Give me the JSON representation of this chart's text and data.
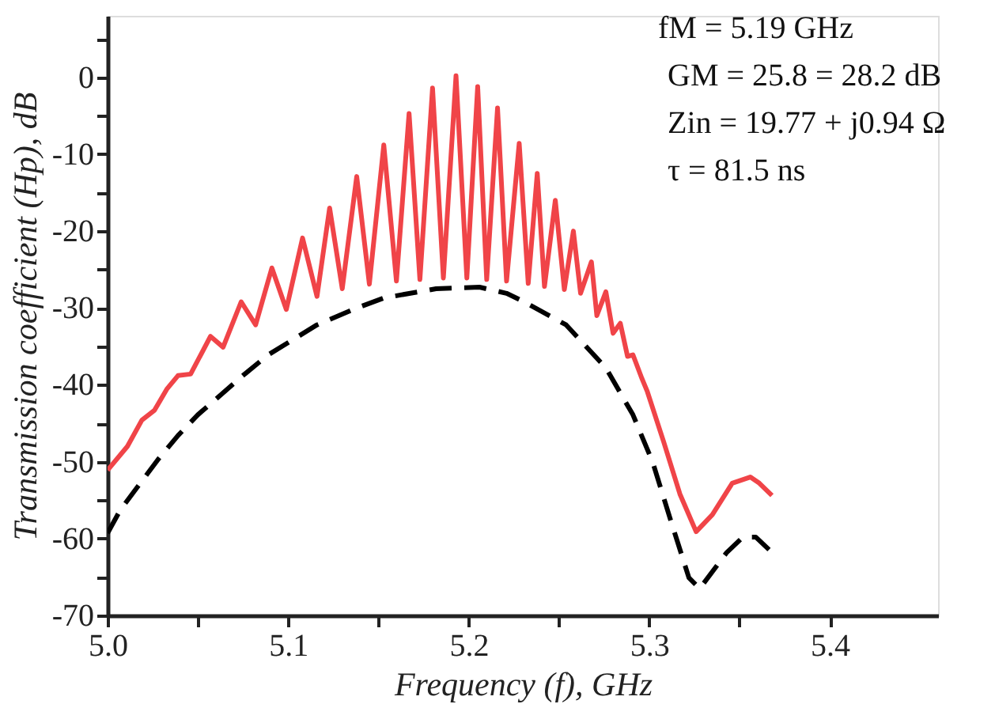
{
  "chart_data": {
    "type": "line",
    "xlabel": "Frequency (f), GHz",
    "ylabel": "Transmission coefficient (Hp), dB",
    "xlim": [
      5.0,
      5.46
    ],
    "ylim": [
      -70,
      8
    ],
    "xticks": [
      {
        "value": 5.0,
        "label": "5.0"
      },
      {
        "value": 5.05,
        "label": null
      },
      5.1,
      {
        "value": 5.15,
        "label": null
      },
      5.2,
      {
        "value": 5.25,
        "label": null
      },
      5.3,
      {
        "value": 5.35,
        "label": null
      },
      5.4
    ],
    "yticks": [
      -70,
      {
        "value": -65,
        "label": null
      },
      -60,
      {
        "value": -55,
        "label": null
      },
      -50,
      {
        "value": -45,
        "label": null
      },
      -40,
      {
        "value": -35,
        "label": null
      },
      -30,
      {
        "value": -25,
        "label": null
      },
      -20,
      {
        "value": -15,
        "label": null
      },
      -10,
      {
        "value": -5,
        "label": null
      },
      0,
      {
        "value": 5,
        "label": null
      }
    ],
    "grid": false,
    "annotations": [
      "fM = 5.19 GHz",
      "GM = 25.8 = 28.2 dB",
      "Zin = 19.77 + j0.94 Ω",
      "τ = 81.5 ns"
    ],
    "series": [
      {
        "color": "#f04448",
        "line_style": "solid",
        "x": [
          5.0,
          5.011,
          5.019,
          5.026,
          5.033,
          5.039,
          5.046,
          5.057,
          5.064,
          5.074,
          5.082,
          5.091,
          5.099,
          5.108,
          5.116,
          5.123,
          5.13,
          5.138,
          5.145,
          5.153,
          5.16,
          5.167,
          5.173,
          5.18,
          5.186,
          5.193,
          5.199,
          5.205,
          5.21,
          5.216,
          5.221,
          5.228,
          5.233,
          5.238,
          5.242,
          5.248,
          5.253,
          5.258,
          5.262,
          5.268,
          5.271,
          5.276,
          5.28,
          5.284,
          5.288,
          5.291,
          5.296,
          5.299,
          5.308,
          5.317,
          5.326,
          5.335,
          5.346,
          5.356,
          5.361,
          5.368
        ],
        "values": [
          -51.1,
          -48.0,
          -44.6,
          -43.3,
          -40.5,
          -38.8,
          -38.6,
          -33.7,
          -35.1,
          -29.2,
          -32.2,
          -24.8,
          -30.2,
          -20.9,
          -28.5,
          -17.0,
          -27.5,
          -12.9,
          -26.9,
          -8.8,
          -26.5,
          -4.7,
          -26.3,
          -1.4,
          -26.1,
          0.2,
          -26.1,
          -1.2,
          -26.3,
          -4.0,
          -26.5,
          -8.6,
          -26.8,
          -12.5,
          -27.2,
          -16.0,
          -27.6,
          -20.0,
          -28.1,
          -24.0,
          -31.0,
          -27.9,
          -33.3,
          -32.0,
          -36.3,
          -36.1,
          -39.2,
          -40.9,
          -47.4,
          -54.2,
          -59.1,
          -56.9,
          -52.8,
          -52.0,
          -52.8,
          -54.4
        ]
      },
      {
        "color": "#000000",
        "line_style": "dashed",
        "x": [
          5.0,
          5.007,
          5.028,
          5.039,
          5.05,
          5.076,
          5.089,
          5.116,
          5.136,
          5.153,
          5.182,
          5.206,
          5.221,
          5.229,
          5.254,
          5.276,
          5.291,
          5.302,
          5.312,
          5.322,
          5.328,
          5.343,
          5.352,
          5.359,
          5.368
        ],
        "values": [
          -59.3,
          -56.3,
          -49.7,
          -46.6,
          -43.9,
          -38.6,
          -36.1,
          -32.2,
          -30.2,
          -28.7,
          -27.5,
          -27.3,
          -28.1,
          -29.0,
          -32.2,
          -37.8,
          -43.9,
          -50.1,
          -57.7,
          -65.1,
          -66.5,
          -61.8,
          -59.8,
          -59.8,
          -61.8
        ]
      }
    ]
  }
}
